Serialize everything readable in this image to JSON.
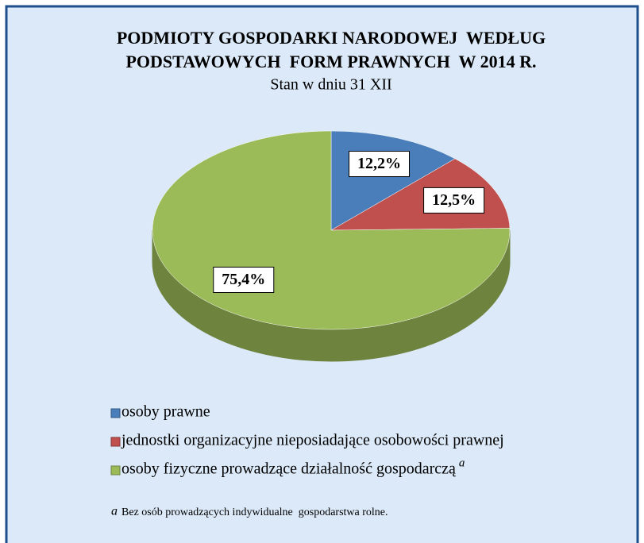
{
  "chart_data": {
    "type": "pie3d",
    "title": [
      "PODMIOTY GOSPODARKI NARODOWEJ  WEDŁUG",
      "PODSTAWOWYCH  FORM PRAWNYCH  W 2014 R."
    ],
    "subtitle": "Stan w dniu 31 XII",
    "categories": [
      "osoby prawne",
      "jednostki organizacyjne nieposiadające osobowości prawnej",
      "osoby fizyczne prowadzące działalność gospodarczą"
    ],
    "values": [
      12.2,
      12.5,
      75.4
    ],
    "value_labels": [
      "12,2%",
      "12,5%",
      "75,4%"
    ],
    "colors": [
      "#4a7ebb",
      "#c0504d",
      "#9bbb59"
    ],
    "legend": "bottom-left",
    "footnote": {
      "marker": "a",
      "text": "Bez osób prowadzących indywidualne  gospodarstwa rolne."
    }
  }
}
